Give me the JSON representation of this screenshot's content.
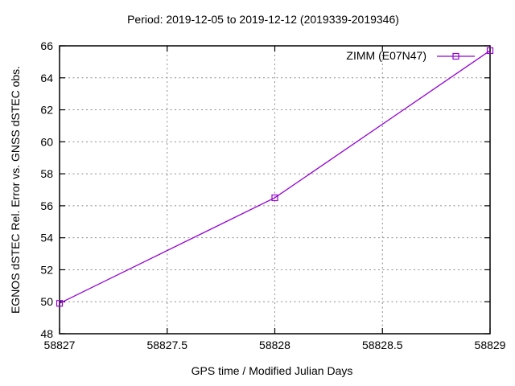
{
  "window": {
    "background": "#ffffff"
  },
  "chart_data": {
    "type": "line",
    "title": "Period: 2019-12-05 to 2019-12-12 (2019339-2019346)",
    "xlabel": "GPS time / Modified Julian Days",
    "ylabel": "EGNOS dSTEC Rel. Error vs. GNSS dSTEC obs.",
    "xlim": [
      58827,
      58829
    ],
    "ylim": [
      48,
      66
    ],
    "xticks": [
      58827,
      58827.5,
      58828,
      58828.5,
      58829
    ],
    "xtick_labels": [
      "58827",
      "58827.5",
      "58828",
      "58828.5",
      "58829"
    ],
    "yticks": [
      48,
      50,
      52,
      54,
      56,
      58,
      60,
      62,
      64,
      66
    ],
    "ytick_labels": [
      "48",
      "50",
      "52",
      "54",
      "56",
      "58",
      "60",
      "62",
      "64",
      "66"
    ],
    "grid": true,
    "legend": {
      "position": "top-right-inside",
      "entries": [
        "ZIMM (E07N47)"
      ]
    },
    "series": [
      {
        "name": "ZIMM (E07N47)",
        "x": [
          58827,
          58828,
          58829
        ],
        "y": [
          49.9,
          56.5,
          65.7
        ],
        "color": "#9400d3",
        "marker": "open-square"
      }
    ],
    "colors": {
      "grid": "#8c8c8c",
      "axis": "#000000",
      "text": "#000000",
      "background": "#ffffff"
    }
  }
}
